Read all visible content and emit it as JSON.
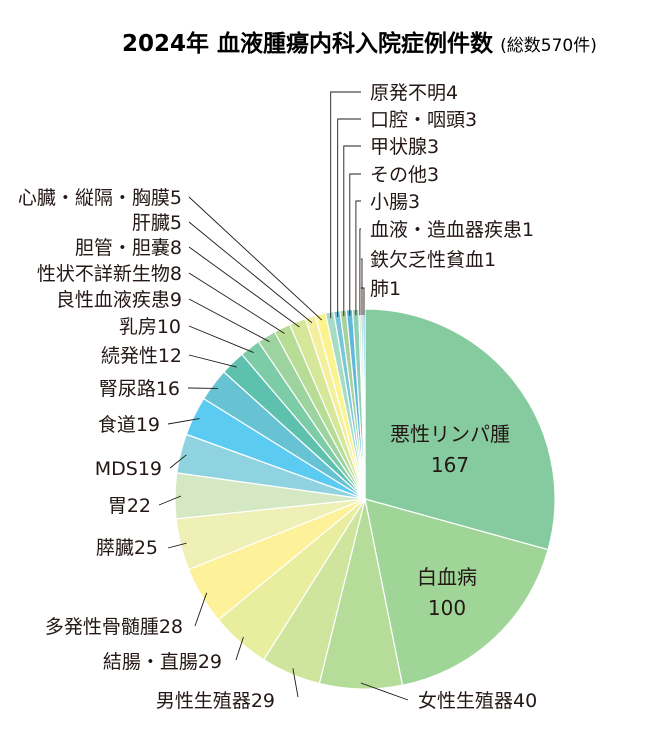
{
  "chart_data": {
    "type": "pie",
    "title": "2024年 血液腫瘍内科入院症例件数",
    "subtitle": "(総数570件)",
    "slices": [
      {
        "label": "悪性リンパ腫",
        "value": 167,
        "color": "#86cb9f"
      },
      {
        "label": "白血病",
        "value": 100,
        "color": "#9fd597"
      },
      {
        "label": "女性生殖器",
        "value": 40,
        "color": "#b5dc99"
      },
      {
        "label": "男性生殖器",
        "value": 29,
        "color": "#cfe59e"
      },
      {
        "label": "結腸・直腸",
        "value": 29,
        "color": "#e8ee9e"
      },
      {
        "label": "多発性骨髄腫",
        "value": 28,
        "color": "#fdf29a"
      },
      {
        "label": "膵臓",
        "value": 25,
        "color": "#eef0b6"
      },
      {
        "label": "胃",
        "value": 22,
        "color": "#d4e8c4"
      },
      {
        "label": "MDS",
        "value": 19,
        "color": "#8fd3e0"
      },
      {
        "label": "食道",
        "value": 19,
        "color": "#5ccbf2"
      },
      {
        "label": "腎尿路",
        "value": 16,
        "color": "#67c3d4"
      },
      {
        "label": "続発性",
        "value": 12,
        "color": "#5dc1ad"
      },
      {
        "label": "乳房",
        "value": 10,
        "color": "#7ccca8"
      },
      {
        "label": "良性血液疾患",
        "value": 9,
        "color": "#9dd39f"
      },
      {
        "label": "性状不詳新生物",
        "value": 8,
        "color": "#b6dc96"
      },
      {
        "label": "胆管・胆嚢",
        "value": 8,
        "color": "#d6e79a"
      },
      {
        "label": "肝臓",
        "value": 5,
        "color": "#f3ef9e"
      },
      {
        "label": "心臓・縦隔・胸膜",
        "value": 5,
        "color": "#fbf48e"
      },
      {
        "label": "原発不明",
        "value": 4,
        "color": "#a7dcc4"
      },
      {
        "label": "口腔・咽頭",
        "value": 3,
        "color": "#79c6d9"
      },
      {
        "label": "甲状腺",
        "value": 3,
        "color": "#a5d29a"
      },
      {
        "label": "その他",
        "value": 3,
        "color": "#61b8d8"
      },
      {
        "label": "小腸",
        "value": 3,
        "color": "#8dd0b6"
      },
      {
        "label": "血液・造血器疾患",
        "value": 1,
        "color": "#c2e2a4"
      },
      {
        "label": "鉄欠乏性貧血",
        "value": 1,
        "color": "#7fc3e0"
      },
      {
        "label": "肺",
        "value": 1,
        "color": "#3fb2d9"
      }
    ]
  }
}
